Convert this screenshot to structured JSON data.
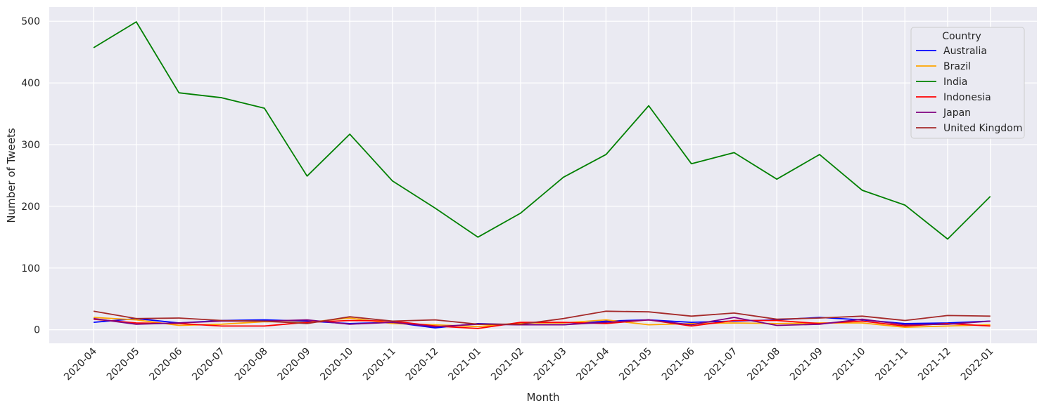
{
  "chart_data": {
    "type": "line",
    "xlabel": "Month",
    "ylabel": "Number of Tweets",
    "ylim": [
      -22,
      523
    ],
    "yticks": [
      0,
      100,
      200,
      300,
      400,
      500
    ],
    "grid": true,
    "legend": {
      "title": "Country",
      "placement": "top-right"
    },
    "categories": [
      "2020-04",
      "2020-05",
      "2020-06",
      "2020-07",
      "2020-08",
      "2020-09",
      "2020-10",
      "2020-11",
      "2020-12",
      "2021-01",
      "2021-02",
      "2021-03",
      "2021-04",
      "2021-05",
      "2021-06",
      "2021-07",
      "2021-08",
      "2021-09",
      "2021-10",
      "2021-11",
      "2021-12",
      "2022-01"
    ],
    "series": [
      {
        "name": "Australia",
        "color": "#0000ff",
        "values": [
          12,
          18,
          11,
          15,
          16,
          14,
          10,
          12,
          3,
          10,
          8,
          8,
          14,
          16,
          12,
          14,
          16,
          20,
          16,
          10,
          11,
          14
        ]
      },
      {
        "name": "Brazil",
        "color": "#ffa500",
        "values": [
          20,
          16,
          7,
          9,
          13,
          12,
          19,
          10,
          8,
          5,
          11,
          11,
          16,
          8,
          10,
          11,
          10,
          11,
          11,
          4,
          6,
          8
        ]
      },
      {
        "name": "India",
        "color": "#008000",
        "values": [
          457,
          499,
          384,
          376,
          359,
          249,
          317,
          241,
          197,
          150,
          189,
          247,
          284,
          363,
          269,
          287,
          244,
          284,
          226,
          202,
          147,
          216
        ]
      },
      {
        "name": "Indonesia",
        "color": "#ff0000",
        "values": [
          17,
          11,
          10,
          6,
          6,
          12,
          15,
          14,
          6,
          2,
          12,
          12,
          10,
          16,
          6,
          15,
          15,
          10,
          14,
          6,
          10,
          6
        ]
      },
      {
        "name": "Japan",
        "color": "#800080",
        "values": [
          18,
          9,
          11,
          14,
          14,
          16,
          9,
          12,
          5,
          9,
          8,
          8,
          12,
          16,
          8,
          20,
          7,
          9,
          17,
          8,
          9,
          14
        ]
      },
      {
        "name": "United Kingdom",
        "color": "#a52a2a",
        "values": [
          30,
          18,
          19,
          15,
          14,
          10,
          21,
          14,
          16,
          9,
          9,
          18,
          30,
          29,
          22,
          27,
          17,
          19,
          22,
          15,
          23,
          22
        ]
      }
    ]
  }
}
